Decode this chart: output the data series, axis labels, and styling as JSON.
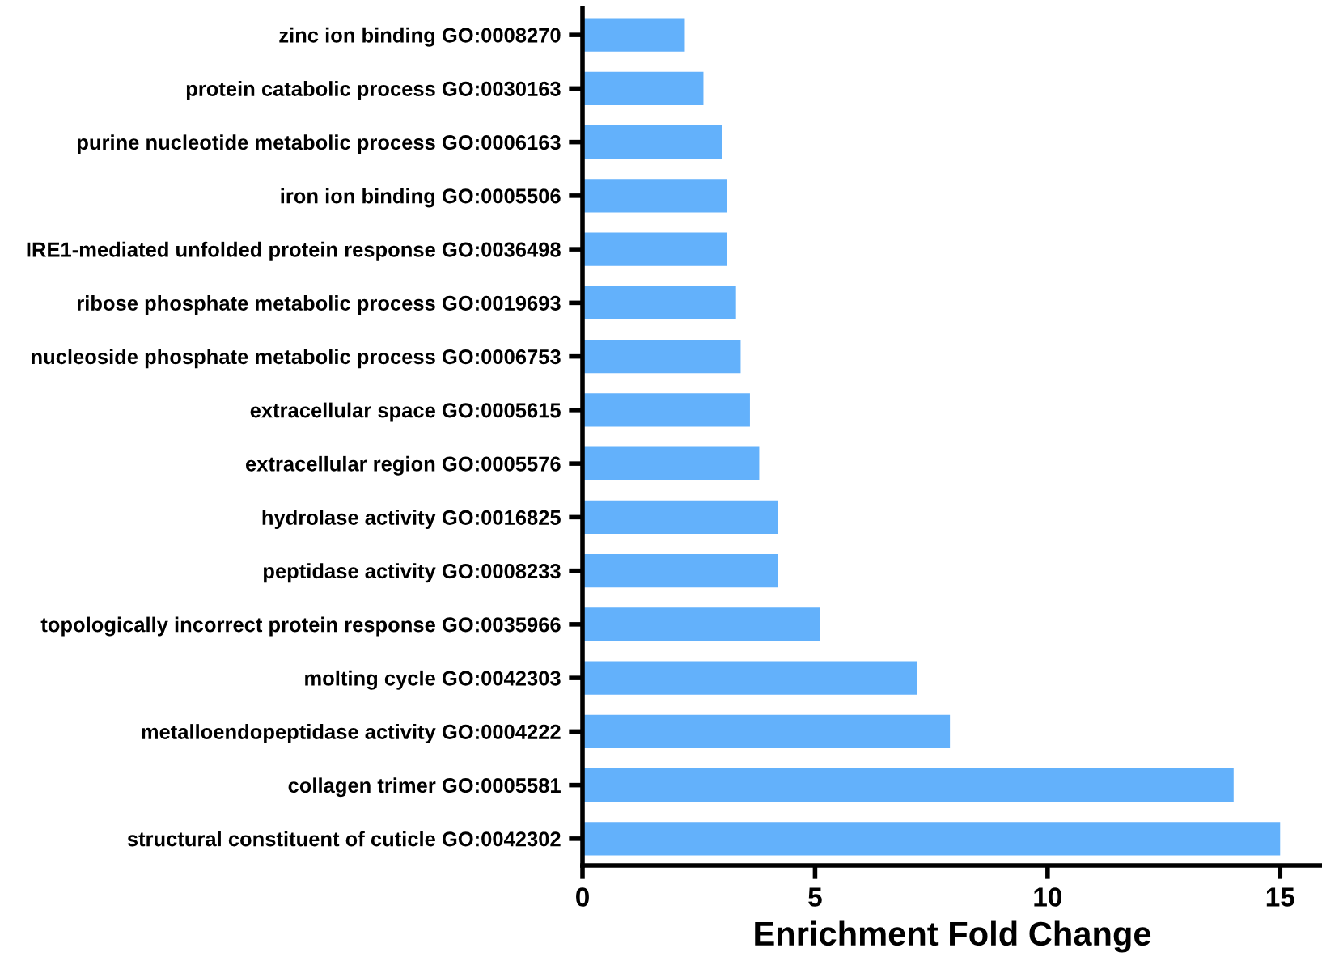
{
  "chart_data": {
    "type": "bar",
    "orientation": "horizontal",
    "xlabel": "Enrichment Fold Change",
    "categories": [
      "zinc ion binding GO:0008270",
      "protein catabolic process GO:0030163",
      "purine nucleotide metabolic process GO:0006163",
      "iron ion binding GO:0005506",
      "IRE1-mediated unfolded protein response GO:0036498",
      "ribose phosphate metabolic process GO:0019693",
      "nucleoside phosphate metabolic process GO:0006753",
      "extracellular space GO:0005615",
      "extracellular region GO:0005576",
      "hydrolase activity GO:0016825",
      "peptidase activity GO:0008233",
      "topologically incorrect protein response GO:0035966",
      "molting cycle GO:0042303",
      "metalloendopeptidase activity GO:0004222",
      "collagen trimer GO:0005581",
      "structural constituent of cuticle GO:0042302"
    ],
    "values": [
      2.2,
      2.6,
      3.0,
      3.1,
      3.1,
      3.3,
      3.4,
      3.6,
      3.8,
      4.2,
      4.2,
      5.1,
      7.2,
      7.9,
      14.0,
      15.0
    ],
    "color": "#63b1fb",
    "xlim": [
      0,
      15.9
    ],
    "xticks": [
      0,
      5,
      10,
      15
    ],
    "grid": false,
    "legend": false
  }
}
